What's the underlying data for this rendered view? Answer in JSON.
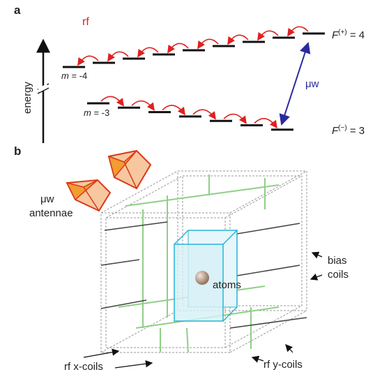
{
  "panel_a": {
    "label": "a",
    "rf_label": "rf",
    "axis_label": "energy",
    "upper_manifold": {
      "m_label": {
        "symbol": "m",
        "rest": "= -4"
      },
      "F_label": {
        "symbol": "F",
        "superscript": "(+)",
        "rest": "= 4"
      }
    },
    "lower_manifold": {
      "m_label": {
        "symbol": "m",
        "rest": "= -3"
      },
      "F_label": {
        "symbol": "F",
        "superscript": "(−)",
        "rest": "= 3"
      }
    },
    "mw_label": "μw"
  },
  "panel_b": {
    "label": "b",
    "antennae_label": [
      "μw",
      "antennae"
    ],
    "bias_label": [
      "bias",
      "coils"
    ],
    "atoms_label": "atoms",
    "rf_x_label": "rf x-coils",
    "rf_y_label": "rf y-coils"
  }
}
